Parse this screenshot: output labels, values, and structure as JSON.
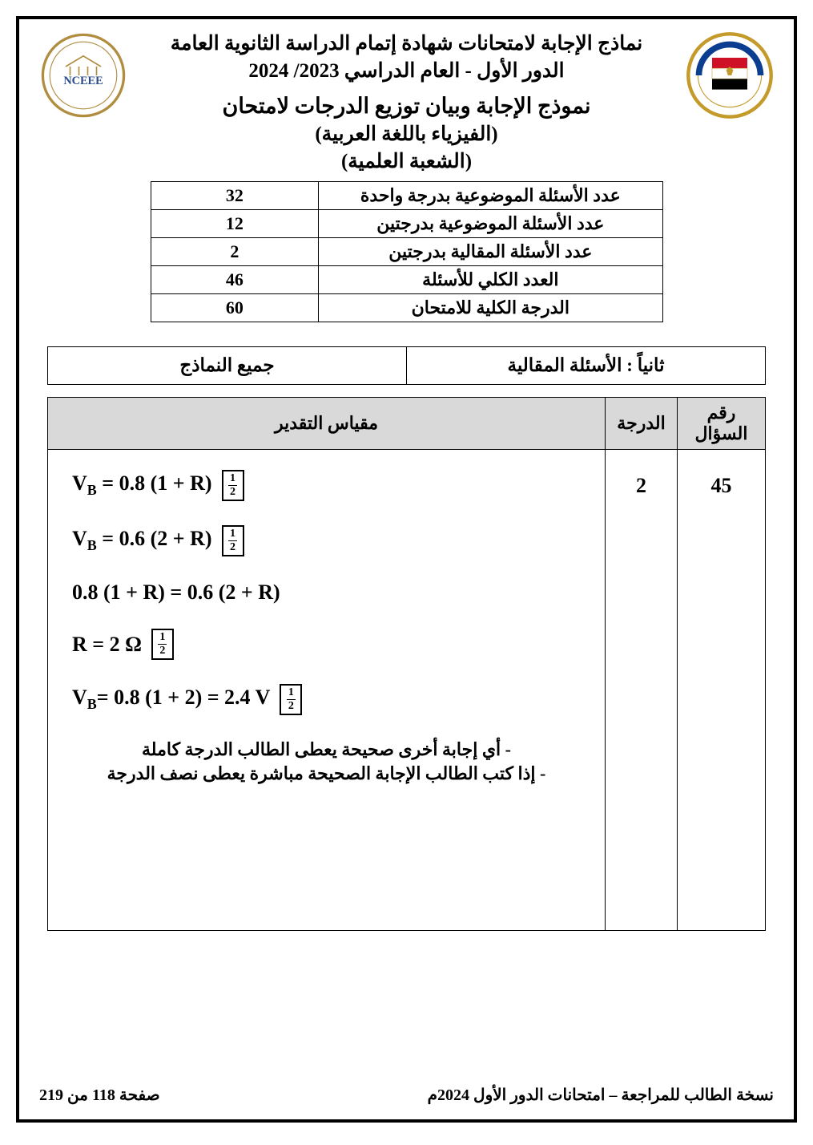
{
  "header": {
    "line1": "نماذج الإجابة لامتحانات شهادة إتمام الدراسة الثانوية العامة",
    "line2": "الدور الأول - العام الدراسي 2023/ 2024",
    "line3": "نموذج الإجابة وبيان توزيع الدرجات لامتحان",
    "line4": "(الفيزياء باللغة العربية)",
    "line5": "(الشعبة العلمية)"
  },
  "logos": {
    "right_label": "MINISTRY OF EDUCATION AND TECHNICAL EDUCATION",
    "right_colors": {
      "outer": "#c49a2a",
      "flag_red": "#ce1126",
      "flag_black": "#000000",
      "band": "#0b3d91"
    },
    "left_label": "NCEEE",
    "left_colors": {
      "ring": "#b08d3f",
      "text": "#2a4a8a"
    }
  },
  "info_table": {
    "rows": [
      {
        "label": "عدد الأسئلة الموضوعية بدرجة واحدة",
        "value": "32"
      },
      {
        "label": "عدد الأسئلة الموضوعية بدرجتين",
        "value": "12"
      },
      {
        "label": "عدد الأسئلة المقالية بدرجتين",
        "value": "2"
      },
      {
        "label": "العدد الكلي للأسئلة",
        "value": "46"
      },
      {
        "label": "الدرجة الكلية للامتحان",
        "value": "60"
      }
    ]
  },
  "section": {
    "right": "ثانياً : الأسئلة المقالية",
    "left": "جميع النماذج"
  },
  "columns": {
    "q": "رقم السؤال",
    "g": "الدرجة",
    "r": "مقياس التقدير"
  },
  "answer": {
    "question_no": "45",
    "grade": "2",
    "half_mark": {
      "num": "1",
      "den": "2"
    },
    "eq1_lhs": "V",
    "eq1_sub": "B",
    "eq1_rhs": " = 0.8 (1 + R)",
    "eq2_lhs": "V",
    "eq2_sub": "B",
    "eq2_rhs": " = 0.6 (2 + R)",
    "eq3": "0.8 (1 + R) = 0.6  (2 + R)",
    "eq4": "R = 2  Ω",
    "eq5_lhs": "V",
    "eq5_sub": "B",
    "eq5_rhs": "= 0.8 (1 + 2) = 2.4 V",
    "note1": "-   أي إجابة أخرى صحيحة يعطى الطالب الدرجة كاملة",
    "note2": "-   إذا كتب الطالب الإجابة الصحيحة مباشرة يعطى نصف الدرجة"
  },
  "footer": {
    "right": "نسخة الطالب للمراجعة – امتحانات الدور الأول 2024م",
    "left_prefix": "صفحة ",
    "page": "118",
    "of_word": " من ",
    "total": "219"
  },
  "colors": {
    "header_bg": "#d9d9d9",
    "border": "#000000",
    "text": "#000000",
    "page_bg": "#ffffff"
  }
}
